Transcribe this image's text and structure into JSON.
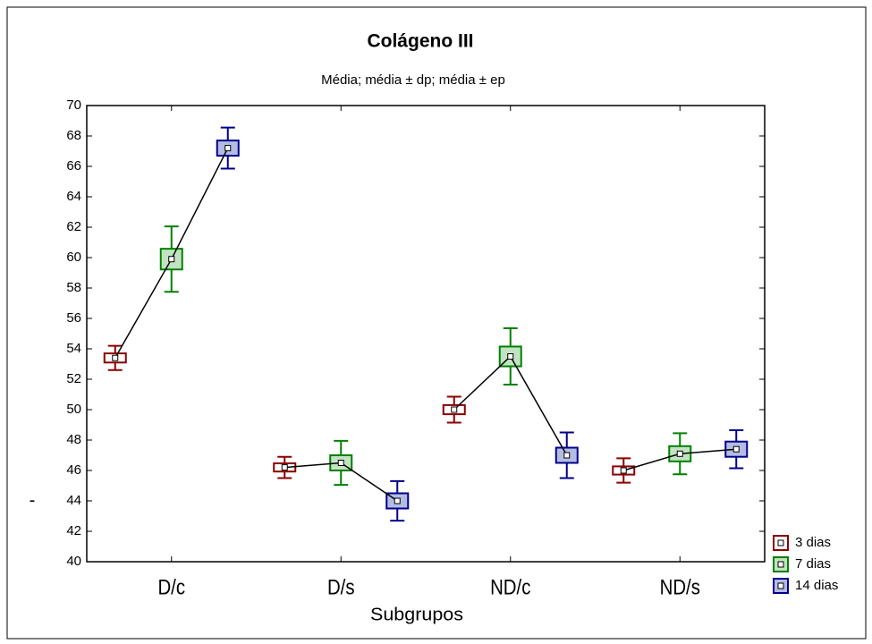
{
  "chart_data": {
    "type": "box",
    "title": "Colágeno III",
    "subtitle": "Média; média ± dp; média ± ep",
    "xlabel": "Subgrupos",
    "ylabel": "-",
    "categories": [
      "D/c",
      "D/s",
      "ND/c",
      "ND/s"
    ],
    "ylim": [
      40,
      70
    ],
    "yticks": [
      40,
      42,
      44,
      46,
      48,
      50,
      52,
      54,
      56,
      58,
      60,
      62,
      64,
      66,
      68,
      70
    ],
    "legend": "lower right outside",
    "series": [
      {
        "name": "3 dias",
        "color": "#8b0000",
        "fill": "#ffffff",
        "values": [
          53.4,
          46.2,
          50.0,
          46.0
        ],
        "se": [
          0.3,
          0.27,
          0.3,
          0.27
        ],
        "sd": [
          0.8,
          0.7,
          0.85,
          0.8
        ]
      },
      {
        "name": "7 dias",
        "color": "#008000",
        "fill": "#c2e3c2",
        "values": [
          59.9,
          46.5,
          53.5,
          47.1
        ],
        "se": [
          0.68,
          0.5,
          0.65,
          0.5
        ],
        "sd": [
          2.15,
          1.45,
          1.85,
          1.35
        ]
      },
      {
        "name": "14 dias",
        "color": "#00008b",
        "fill": "#b4bce4",
        "values": [
          67.2,
          44.0,
          47.0,
          47.4
        ],
        "se": [
          0.5,
          0.5,
          0.5,
          0.5
        ],
        "sd": [
          1.35,
          1.3,
          1.5,
          1.25
        ]
      }
    ]
  }
}
